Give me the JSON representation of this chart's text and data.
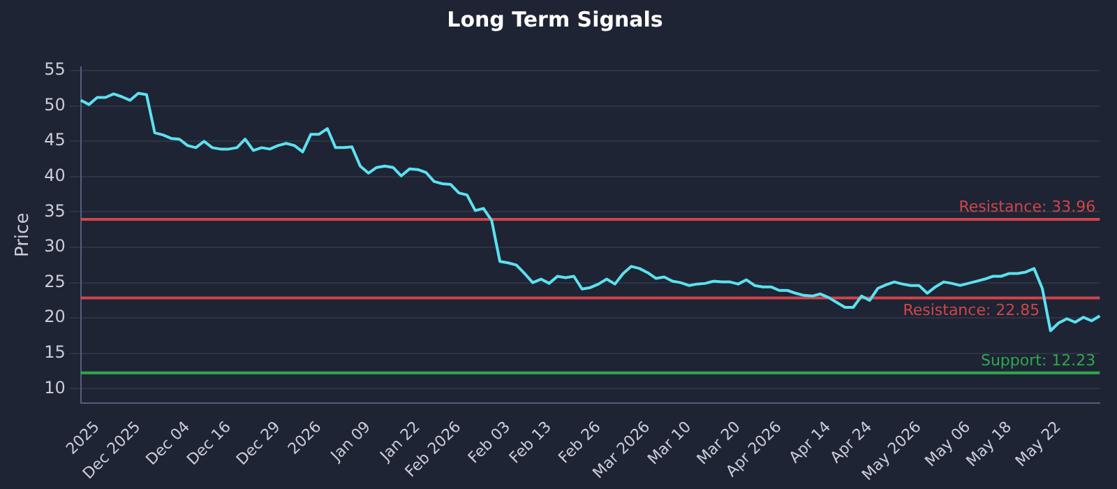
{
  "chart_data": {
    "type": "line",
    "title": "Long Term Signals",
    "ylabel": "Price",
    "categories": [
      null,
      null,
      "2025",
      null,
      null,
      null,
      null,
      "Dec 2025",
      null,
      null,
      null,
      null,
      null,
      "Dec 04",
      null,
      null,
      null,
      null,
      "Dec 16",
      null,
      null,
      null,
      null,
      null,
      "Dec 29",
      null,
      null,
      null,
      null,
      "2026",
      null,
      null,
      null,
      null,
      null,
      "Jan 09",
      null,
      null,
      null,
      null,
      null,
      "Jan 22",
      null,
      null,
      null,
      null,
      "Feb 2026",
      null,
      null,
      null,
      null,
      null,
      "Feb 03",
      null,
      null,
      null,
      null,
      "Feb 13",
      null,
      null,
      null,
      null,
      null,
      "Feb 26",
      null,
      null,
      null,
      null,
      null,
      "Mar 2026",
      null,
      null,
      null,
      null,
      "Mar 10",
      null,
      null,
      null,
      null,
      null,
      "Mar 20",
      null,
      null,
      null,
      null,
      "Apr 2026",
      null,
      null,
      null,
      null,
      null,
      "Apr 14",
      null,
      null,
      null,
      null,
      "Apr 24",
      null,
      null,
      null,
      null,
      null,
      "May 2026",
      null,
      null,
      null,
      null,
      null,
      "May 06",
      null,
      null,
      null,
      null,
      "May 18",
      null,
      null,
      null,
      null,
      null,
      "May 22",
      null,
      null,
      null,
      null,
      null
    ],
    "series": [
      {
        "color": "#5ce1f0",
        "values": [
          50.8,
          50.2,
          51.2,
          51.2,
          51.7,
          51.3,
          50.8,
          51.8,
          51.6,
          46.2,
          45.9,
          45.4,
          45.3,
          44.4,
          44.1,
          45.0,
          44.1,
          43.9,
          43.9,
          44.1,
          45.3,
          43.7,
          44.1,
          43.9,
          44.4,
          44.7,
          44.4,
          43.5,
          46.0,
          46.0,
          46.8,
          44.1,
          44.1,
          44.2,
          41.5,
          40.5,
          41.3,
          41.5,
          41.3,
          40.1,
          41.1,
          41.0,
          40.6,
          39.3,
          39.0,
          38.9,
          37.7,
          37.4,
          35.2,
          35.5,
          33.8,
          28.0,
          27.8,
          27.5,
          26.3,
          25.0,
          25.5,
          24.9,
          25.9,
          25.7,
          25.9,
          24.1,
          24.3,
          24.8,
          25.5,
          24.8,
          26.3,
          27.3,
          27.0,
          26.4,
          25.6,
          25.8,
          25.2,
          25.0,
          24.6,
          24.8,
          24.9,
          25.2,
          25.1,
          25.1,
          24.8,
          25.4,
          24.6,
          24.4,
          24.4,
          23.9,
          23.9,
          23.5,
          23.2,
          23.1,
          23.4,
          22.9,
          22.2,
          21.5,
          21.5,
          23.1,
          22.5,
          24.2,
          24.7,
          25.1,
          24.8,
          24.6,
          24.6,
          23.5,
          24.4,
          25.1,
          24.9,
          24.6,
          24.9,
          25.2,
          25.5,
          25.9,
          25.9,
          26.3,
          26.3,
          26.5,
          27.0,
          24.2,
          18.2,
          19.3,
          19.9,
          19.4,
          20.1,
          19.6,
          20.3
        ]
      }
    ],
    "ylim": [
      8,
      55.5
    ],
    "yticks": [
      10,
      15,
      20,
      25,
      30,
      35,
      40,
      45,
      50,
      55
    ],
    "ref_lines": [
      {
        "axis": "y",
        "value": 33.96,
        "label": "Resistance: 33.96",
        "color": "#d0454c"
      },
      {
        "axis": "y",
        "value": 22.85,
        "label": "Resistance: 22.85",
        "color": "#d0454c"
      },
      {
        "axis": "y",
        "value": 12.23,
        "label": "Support: 12.23",
        "color": "#2ea84f"
      }
    ],
    "grid": "y",
    "legend": false,
    "marker": "none",
    "line_style": "solid"
  }
}
